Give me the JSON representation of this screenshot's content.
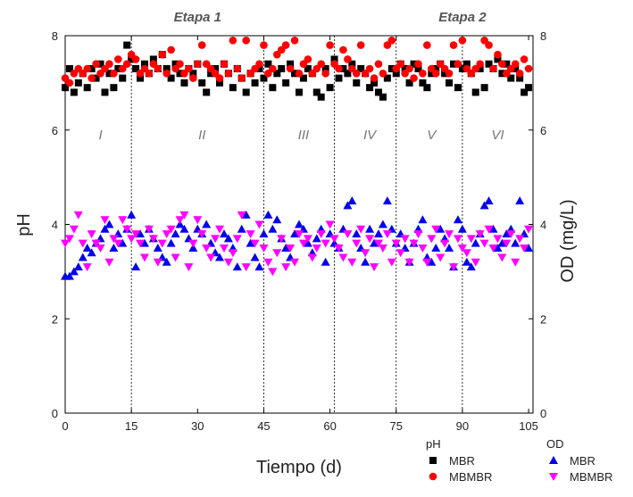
{
  "chart_data": {
    "type": "scatter",
    "xlabel": "Tiempo (d)",
    "ylabel_left": "pH",
    "ylabel_right": "OD (mg/L)",
    "xlim": [
      0,
      106
    ],
    "ylim_left": [
      0,
      8
    ],
    "ylim_right": [
      0,
      8
    ],
    "xticks": [
      0,
      15,
      30,
      45,
      60,
      75,
      90,
      105
    ],
    "yticks_left": [
      0,
      2,
      4,
      6,
      8
    ],
    "yticks_right": [
      0,
      2,
      4,
      6,
      8
    ],
    "grid": false,
    "legend_placement": "bottom-right",
    "dividers": [
      15,
      45,
      61,
      75,
      90
    ],
    "stage_labels": [
      {
        "text": "Etapa 1",
        "x": 30,
        "y": 8.4
      },
      {
        "text": "Etapa 2",
        "x": 90,
        "y": 8.4
      }
    ],
    "period_labels": [
      {
        "text": "I",
        "x": 8,
        "y": 5.9
      },
      {
        "text": "II",
        "x": 31,
        "y": 5.9
      },
      {
        "text": "III",
        "x": 54,
        "y": 5.9
      },
      {
        "text": "IV",
        "x": 69,
        "y": 5.9
      },
      {
        "text": "V",
        "x": 83,
        "y": 5.9
      },
      {
        "text": "VI",
        "x": 98,
        "y": 5.9
      }
    ],
    "legend": {
      "groups": [
        {
          "title": "pH",
          "entries": [
            "MBR",
            "MBMBR"
          ]
        },
        {
          "title": "OD",
          "entries": [
            "MBR",
            "MBMBR"
          ]
        }
      ]
    },
    "series": [
      {
        "name": "MBR",
        "group": "pH",
        "axis": "left",
        "marker": "square",
        "color": "#000000",
        "x": [
          0,
          1,
          2,
          3,
          4,
          5,
          6,
          7,
          8,
          9,
          10,
          11,
          12,
          13,
          14,
          15,
          16,
          17,
          18,
          19,
          20,
          21,
          22,
          23,
          24,
          25,
          26,
          27,
          28,
          29,
          30,
          31,
          32,
          33,
          34,
          35,
          36,
          37,
          38,
          39,
          40,
          41,
          42,
          43,
          44,
          45,
          46,
          47,
          48,
          49,
          50,
          51,
          52,
          53,
          54,
          55,
          56,
          57,
          58,
          59,
          60,
          61,
          62,
          63,
          64,
          65,
          66,
          67,
          68,
          69,
          70,
          71,
          72,
          73,
          74,
          75,
          76,
          77,
          78,
          79,
          80,
          81,
          82,
          83,
          84,
          85,
          86,
          87,
          88,
          89,
          90,
          91,
          92,
          93,
          94,
          95,
          96,
          97,
          98,
          99,
          100,
          101,
          102,
          103,
          104,
          105
        ],
        "y": [
          6.9,
          7.3,
          6.8,
          7.0,
          7.2,
          6.9,
          7.3,
          7.1,
          7.4,
          6.8,
          7.2,
          6.9,
          7.3,
          7.1,
          7.8,
          7.5,
          7.3,
          7.1,
          7.4,
          7.2,
          7.5,
          7.3,
          7.6,
          7.3,
          7.1,
          7.4,
          7.2,
          7.0,
          7.3,
          7.2,
          7.4,
          7.0,
          6.8,
          7.2,
          7.3,
          7.0,
          7.4,
          7.2,
          6.9,
          7.3,
          7.1,
          6.8,
          7.2,
          7.0,
          7.3,
          7.1,
          7.4,
          6.9,
          7.2,
          7.3,
          7.0,
          7.4,
          7.2,
          6.8,
          7.1,
          7.3,
          7.2,
          6.8,
          6.7,
          7.3,
          6.9,
          7.5,
          7.1,
          7.3,
          7.2,
          7.4,
          7.0,
          7.3,
          7.2,
          6.9,
          7.0,
          6.8,
          6.7,
          7.1,
          7.3,
          7.2,
          7.4,
          7.3,
          7.0,
          7.4,
          7.3,
          7.0,
          6.9,
          7.2,
          7.3,
          7.4,
          7.2,
          7.0,
          7.4,
          6.9,
          7.3,
          7.4,
          7.2,
          6.8,
          7.3,
          6.9,
          7.4,
          7.3,
          7.5,
          7.2,
          7.4,
          7.1,
          7.3,
          7.1,
          6.8,
          6.9
        ]
      },
      {
        "name": "MBMBR",
        "group": "pH",
        "axis": "left",
        "marker": "circle",
        "color": "#ff0000",
        "x": [
          0,
          1,
          2,
          3,
          4,
          5,
          6,
          7,
          8,
          9,
          10,
          11,
          12,
          13,
          14,
          15,
          16,
          17,
          18,
          19,
          20,
          21,
          22,
          23,
          24,
          25,
          26,
          27,
          28,
          29,
          30,
          31,
          32,
          33,
          34,
          35,
          36,
          37,
          38,
          39,
          40,
          41,
          42,
          43,
          44,
          45,
          46,
          47,
          48,
          49,
          50,
          51,
          52,
          53,
          54,
          55,
          56,
          57,
          58,
          59,
          60,
          61,
          62,
          63,
          64,
          65,
          66,
          67,
          68,
          69,
          70,
          71,
          72,
          73,
          74,
          75,
          76,
          77,
          78,
          79,
          80,
          81,
          82,
          83,
          84,
          85,
          86,
          87,
          88,
          89,
          90,
          91,
          92,
          93,
          94,
          95,
          96,
          97,
          98,
          99,
          100,
          101,
          102,
          103,
          104,
          105
        ],
        "y": [
          7.1,
          7.0,
          7.2,
          7.3,
          7.2,
          7.3,
          7.1,
          7.4,
          7.2,
          7.3,
          7.4,
          7.2,
          7.5,
          7.3,
          7.4,
          7.6,
          7.5,
          7.2,
          7.3,
          7.2,
          7.4,
          7.3,
          7.6,
          7.2,
          7.7,
          7.3,
          7.4,
          7.2,
          7.3,
          7.1,
          7.4,
          7.8,
          7.4,
          7.3,
          7.2,
          7.1,
          7.4,
          7.2,
          7.9,
          7.3,
          7.1,
          7.9,
          7.2,
          7.3,
          7.4,
          7.8,
          7.2,
          7.3,
          7.6,
          7.7,
          7.8,
          7.3,
          7.9,
          7.2,
          7.4,
          7.5,
          7.2,
          7.3,
          7.4,
          7.2,
          7.8,
          7.4,
          7.3,
          7.7,
          7.5,
          7.3,
          7.2,
          7.8,
          7.2,
          7.3,
          7.1,
          7.4,
          7.2,
          7.8,
          7.9,
          7.3,
          7.4,
          7.2,
          7.3,
          7.1,
          7.4,
          7.2,
          7.8,
          7.3,
          7.2,
          7.4,
          7.3,
          7.2,
          7.8,
          7.4,
          7.9,
          7.3,
          7.2,
          7.3,
          7.4,
          7.9,
          7.8,
          7.3,
          7.6,
          7.4,
          7.2,
          7.3,
          7.4,
          7.2,
          7.5,
          7.3
        ]
      },
      {
        "name": "MBR",
        "group": "OD",
        "axis": "right",
        "marker": "triangle-up",
        "color": "#0000ee",
        "x": [
          0,
          1,
          2,
          3,
          4,
          5,
          6,
          7,
          8,
          9,
          10,
          11,
          12,
          13,
          14,
          15,
          16,
          17,
          18,
          19,
          20,
          21,
          22,
          23,
          24,
          25,
          26,
          27,
          28,
          29,
          30,
          31,
          32,
          33,
          34,
          35,
          36,
          37,
          38,
          39,
          40,
          41,
          42,
          43,
          44,
          45,
          46,
          47,
          48,
          49,
          50,
          51,
          52,
          53,
          54,
          55,
          56,
          57,
          58,
          59,
          60,
          61,
          62,
          63,
          64,
          65,
          66,
          67,
          68,
          69,
          70,
          71,
          72,
          73,
          74,
          75,
          76,
          77,
          78,
          79,
          80,
          81,
          82,
          83,
          84,
          85,
          86,
          87,
          88,
          89,
          90,
          91,
          92,
          93,
          94,
          95,
          96,
          97,
          98,
          99,
          100,
          101,
          102,
          103,
          104,
          105
        ],
        "y": [
          2.9,
          2.9,
          3.0,
          3.1,
          3.3,
          3.5,
          3.4,
          3.6,
          3.7,
          3.9,
          4.0,
          3.5,
          3.8,
          3.6,
          3.9,
          4.2,
          3.1,
          3.8,
          3.6,
          3.9,
          3.7,
          3.5,
          3.3,
          3.2,
          3.6,
          3.8,
          4.0,
          3.9,
          3.7,
          3.5,
          3.9,
          3.8,
          4.0,
          3.6,
          3.4,
          3.3,
          3.8,
          3.7,
          3.5,
          3.1,
          3.9,
          4.2,
          3.6,
          3.3,
          3.1,
          3.8,
          4.2,
          3.9,
          4.1,
          3.7,
          3.5,
          3.3,
          3.8,
          4.0,
          3.9,
          3.6,
          3.4,
          3.7,
          3.9,
          3.2,
          3.8,
          3.6,
          3.5,
          3.9,
          4.4,
          4.5,
          3.8,
          3.5,
          3.2,
          3.9,
          3.6,
          3.8,
          4.0,
          4.5,
          3.9,
          3.6,
          3.8,
          3.5,
          3.2,
          3.6,
          3.9,
          4.1,
          3.3,
          3.2,
          3.5,
          3.9,
          3.7,
          3.5,
          3.1,
          4.1,
          3.9,
          3.2,
          3.1,
          3.6,
          3.8,
          4.4,
          4.5,
          3.9,
          3.5,
          3.6,
          3.8,
          3.9,
          3.6,
          4.5,
          3.8,
          3.5
        ]
      },
      {
        "name": "MBMBR",
        "group": "OD",
        "axis": "right",
        "marker": "triangle-down",
        "color": "#ff00ff",
        "x": [
          0,
          1,
          2,
          3,
          4,
          5,
          6,
          7,
          8,
          9,
          10,
          11,
          12,
          13,
          14,
          15,
          16,
          17,
          18,
          19,
          20,
          21,
          22,
          23,
          24,
          25,
          26,
          27,
          28,
          29,
          30,
          31,
          32,
          33,
          34,
          35,
          36,
          37,
          38,
          39,
          40,
          41,
          42,
          43,
          44,
          45,
          46,
          47,
          48,
          49,
          50,
          51,
          52,
          53,
          54,
          55,
          56,
          57,
          58,
          59,
          60,
          61,
          62,
          63,
          64,
          65,
          66,
          67,
          68,
          69,
          70,
          71,
          72,
          73,
          74,
          75,
          76,
          77,
          78,
          79,
          80,
          81,
          82,
          83,
          84,
          85,
          86,
          87,
          88,
          89,
          90,
          91,
          92,
          93,
          94,
          95,
          96,
          97,
          98,
          99,
          100,
          101,
          102,
          103,
          104,
          105
        ],
        "y": [
          3.6,
          3.7,
          3.9,
          4.2,
          3.6,
          3.1,
          3.8,
          3.6,
          3.5,
          4.1,
          3.2,
          3.7,
          3.6,
          4.1,
          3.9,
          3.7,
          3.8,
          3.6,
          3.3,
          3.9,
          3.7,
          3.2,
          3.6,
          3.8,
          3.9,
          3.3,
          4.1,
          4.2,
          3.1,
          3.6,
          4.1,
          3.8,
          3.5,
          3.3,
          3.7,
          3.9,
          3.5,
          3.2,
          3.4,
          3.7,
          4.2,
          3.1,
          3.8,
          3.6,
          4.0,
          3.5,
          3.2,
          3.0,
          3.4,
          3.7,
          3.1,
          3.5,
          3.2,
          3.8,
          3.6,
          3.7,
          3.3,
          3.5,
          3.8,
          3.6,
          4.0,
          3.7,
          3.5,
          3.3,
          3.8,
          3.2,
          3.6,
          3.9,
          3.4,
          3.7,
          3.1,
          3.6,
          3.5,
          3.8,
          3.2,
          3.6,
          3.4,
          3.7,
          3.2,
          3.6,
          3.8,
          3.5,
          3.2,
          3.7,
          3.9,
          3.3,
          3.6,
          3.8,
          3.1,
          3.7,
          3.5,
          3.4,
          3.7,
          3.2,
          3.8,
          3.6,
          3.9,
          3.5,
          3.7,
          3.3,
          3.6,
          3.8,
          3.2,
          3.7,
          3.5,
          3.9
        ]
      }
    ]
  }
}
